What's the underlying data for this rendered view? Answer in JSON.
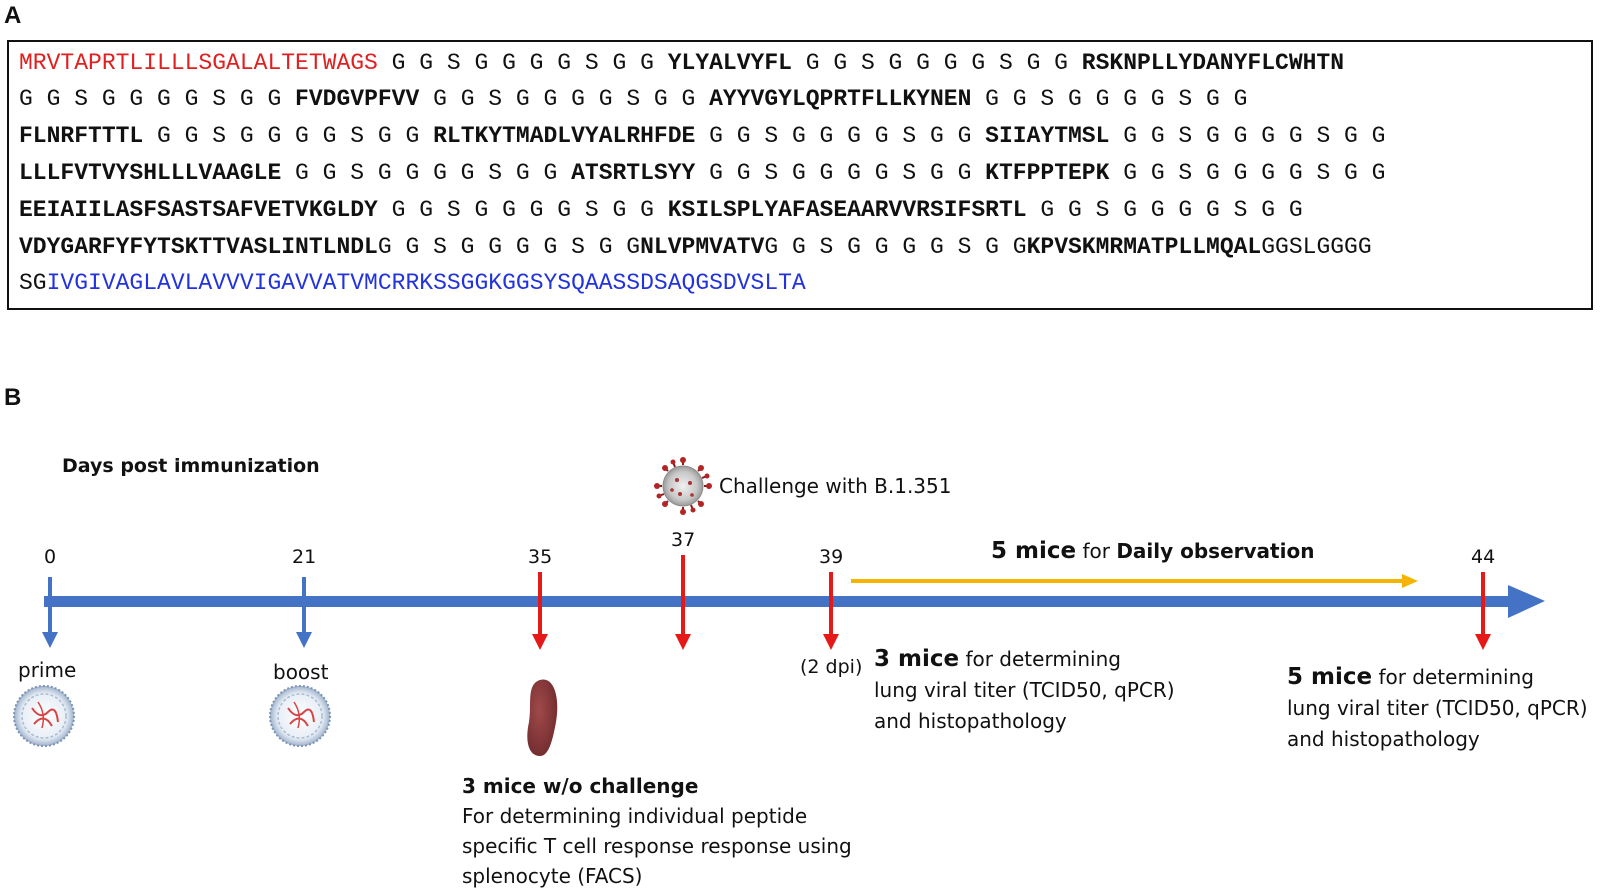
{
  "panel_a": {
    "letter": "A",
    "lines": [
      [
        {
          "t": "sp",
          "v": "MRVTAPRTLILLLSGALALTETWAGS"
        },
        {
          "t": "lk",
          "v": "GGSGGGGSGG"
        },
        {
          "t": "ep",
          "v": "YLYALVYFL"
        },
        {
          "t": "lk",
          "v": "GGSGGGGSGG"
        },
        {
          "t": "ep",
          "v": "RSKNPLLYDANYFLCWHTN"
        }
      ],
      [
        {
          "t": "lk",
          "v": "GGSGGGGSGG"
        },
        {
          "t": "ep",
          "v": "FVDGVPFVV"
        },
        {
          "t": "lk",
          "v": "GGSGGGGSGG"
        },
        {
          "t": "ep",
          "v": "AYYVGYLQPRTFLLKYNEN"
        },
        {
          "t": "lk",
          "v": "GGSGGGGSGG"
        }
      ],
      [
        {
          "t": "ep",
          "v": "FLNRFTTTL"
        },
        {
          "t": "lk",
          "v": "GGSGGGGSGG"
        },
        {
          "t": "ep",
          "v": "RLTKYTMADLVYALRHFDE"
        },
        {
          "t": "lk",
          "v": "GGSGGGGSGG"
        },
        {
          "t": "ep",
          "v": "SIIAYTMSL"
        },
        {
          "t": "lk",
          "v": "GGSGGGGSGG"
        }
      ],
      [
        {
          "t": "ep",
          "v": "LLLFVTVYSHLLLVAAGLE"
        },
        {
          "t": "lk",
          "v": "GGSGGGGSGG"
        },
        {
          "t": "ep",
          "v": "ATSRTLSYY"
        },
        {
          "t": "lk",
          "v": "GGSGGGGSGG"
        },
        {
          "t": "ep",
          "v": "KTFPPTEPK"
        },
        {
          "t": "lk",
          "v": "GGSGGGGSGG"
        }
      ],
      [
        {
          "t": "ep",
          "v": "EEIAIILASFSASTSAFVETVKGLDY"
        },
        {
          "t": "lk",
          "v": "GGSGGGGSGG"
        },
        {
          "t": "ep",
          "v": "KSILSPLYAFASEAARVVRSIFSRTL"
        },
        {
          "t": "lk",
          "v": "GGSGGGGSGG"
        }
      ],
      [
        {
          "t": "ep",
          "v": "VDYGARFYFYTSKTTVASLINTLNDL"
        },
        {
          "t": "lk",
          "v": "GGSGGGGSGG"
        },
        {
          "t": "ep",
          "v": "NLVPMVATV"
        },
        {
          "t": "lk",
          "v": "GGSGGGGSGG"
        },
        {
          "t": "ep",
          "v": "KPVSKMRMATPLLMQAL"
        },
        {
          "t": "lk",
          "v": "GGSLGGGG"
        }
      ],
      [
        {
          "t": "lk",
          "v": "SG"
        },
        {
          "t": "tm",
          "v": "IVGIVAGLAVLAVVVIGAVVATVMCRRKSSGGKGGSYSQAASSDSAQGSDVSLTA"
        }
      ]
    ],
    "colors": {
      "signal_peptide": "#e02020",
      "transmembrane": "#2233dd"
    }
  },
  "panel_b": {
    "letter": "B",
    "axis_title": "Days post immunization",
    "challenge_label": "Challenge with B.1.351",
    "days": [
      "0",
      "21",
      "35",
      "37",
      "39",
      "44"
    ],
    "prime_label": "prime",
    "boost_label": "boost",
    "dpi_label": "(2 dpi)",
    "daily": {
      "count": "5 mice",
      "text1": "for",
      "text2": "Daily observation"
    },
    "group_39": {
      "count": "3 mice",
      "line1": "for determining",
      "line2": "lung viral titer (TCID50, qPCR)",
      "line3": "and histopathology"
    },
    "group_44": {
      "count": "5 mice",
      "line1": "for determining",
      "line2": "lung viral titer (TCID50, qPCR)",
      "line3": "and histopathology"
    },
    "group_35": {
      "title": "3 mice w/o challenge",
      "line1": "For determining individual peptide",
      "line2": "specific T cell response response using",
      "line3": "splenocyte (FACS)"
    },
    "colors": {
      "timeline": "#4472c4",
      "arrow_red": "#e61919",
      "arrow_yellow": "#f5b400",
      "spleen": "#8b3a3a"
    },
    "icons": [
      "vaccine-particle-icon",
      "spleen-icon",
      "virus-icon"
    ]
  }
}
